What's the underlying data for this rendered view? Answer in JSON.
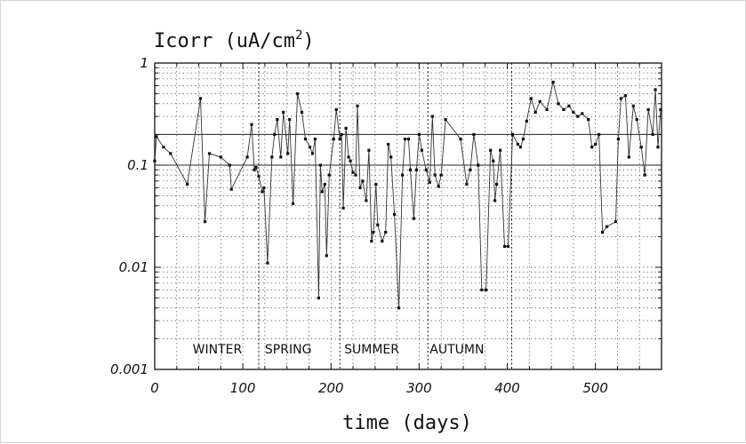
{
  "chart_data": {
    "type": "line",
    "title": "Icorr (uA/cm",
    "title_superscript": "2",
    "title_close": ")",
    "xlabel": "time (days)",
    "ylabel": "",
    "x_scale": "linear",
    "y_scale": "log",
    "xlim": [
      0,
      575
    ],
    "ylim": [
      0.001,
      1
    ],
    "x_ticks": [
      0,
      100,
      200,
      300,
      400,
      500
    ],
    "x_tick_labels": [
      "0",
      "100",
      "200",
      "300",
      "400",
      "500"
    ],
    "y_ticks": [
      0.001,
      0.01,
      0.1,
      1
    ],
    "y_tick_labels": [
      "0.001",
      "0.01",
      "0.1",
      "1"
    ],
    "grid": true,
    "reference_lines": [
      {
        "y": 0.2
      },
      {
        "y": 0.1
      }
    ],
    "season_labels": [
      {
        "text": "WINTER",
        "x": 43
      },
      {
        "text": "SPRING",
        "x": 125
      },
      {
        "text": "SUMMER",
        "x": 215
      },
      {
        "text": "AUTUMN",
        "x": 312
      }
    ],
    "season_dividers": [
      118,
      210,
      310,
      405
    ],
    "series": [
      {
        "x": [
          0,
          2,
          10,
          18,
          37,
          52,
          57,
          62,
          75,
          85,
          87,
          105,
          110,
          113,
          115,
          118,
          122,
          124,
          128,
          133,
          136,
          139,
          143,
          146,
          151,
          153,
          157,
          162,
          167,
          171,
          176,
          179,
          182,
          186,
          188,
          190,
          193,
          195,
          198,
          203,
          206,
          210,
          212,
          214,
          217,
          220,
          222,
          225,
          228,
          230,
          233,
          236,
          240,
          243,
          246,
          248,
          251,
          253,
          258,
          262,
          265,
          268,
          272,
          277,
          281,
          284,
          288,
          290,
          294,
          297,
          300,
          303,
          308,
          312,
          315,
          318,
          322,
          325,
          330,
          347,
          354,
          358,
          362,
          367,
          371,
          376,
          381,
          384,
          386,
          388,
          392,
          397,
          401,
          406,
          412,
          415,
          418,
          422,
          427,
          432,
          437,
          445,
          452,
          458,
          464,
          470,
          475,
          480,
          485,
          492,
          496,
          500,
          504,
          508,
          513,
          523,
          526,
          529,
          534,
          538,
          543,
          547,
          552,
          556,
          560,
          565,
          568,
          571,
          574
        ],
        "y": [
          0.11,
          0.19,
          0.15,
          0.13,
          0.065,
          0.45,
          0.028,
          0.13,
          0.12,
          0.1,
          0.058,
          0.12,
          0.25,
          0.09,
          0.095,
          0.078,
          0.055,
          0.06,
          0.011,
          0.12,
          0.2,
          0.28,
          0.12,
          0.33,
          0.13,
          0.28,
          0.042,
          0.5,
          0.33,
          0.18,
          0.15,
          0.13,
          0.18,
          0.005,
          0.1,
          0.055,
          0.065,
          0.013,
          0.08,
          0.18,
          0.35,
          0.18,
          0.2,
          0.038,
          0.23,
          0.12,
          0.11,
          0.085,
          0.08,
          0.38,
          0.06,
          0.07,
          0.045,
          0.14,
          0.018,
          0.022,
          0.065,
          0.026,
          0.018,
          0.022,
          0.16,
          0.12,
          0.033,
          0.004,
          0.08,
          0.18,
          0.18,
          0.09,
          0.03,
          0.09,
          0.2,
          0.14,
          0.09,
          0.068,
          0.3,
          0.08,
          0.062,
          0.08,
          0.28,
          0.18,
          0.065,
          0.09,
          0.2,
          0.1,
          0.006,
          0.006,
          0.14,
          0.11,
          0.045,
          0.065,
          0.14,
          0.016,
          0.016,
          0.2,
          0.16,
          0.15,
          0.18,
          0.27,
          0.45,
          0.33,
          0.42,
          0.35,
          0.65,
          0.4,
          0.35,
          0.38,
          0.33,
          0.3,
          0.32,
          0.28,
          0.15,
          0.16,
          0.2,
          0.022,
          0.025,
          0.028,
          0.18,
          0.45,
          0.48,
          0.12,
          0.38,
          0.28,
          0.15,
          0.08,
          0.35,
          0.2,
          0.55,
          0.15,
          0.35
        ]
      }
    ]
  }
}
